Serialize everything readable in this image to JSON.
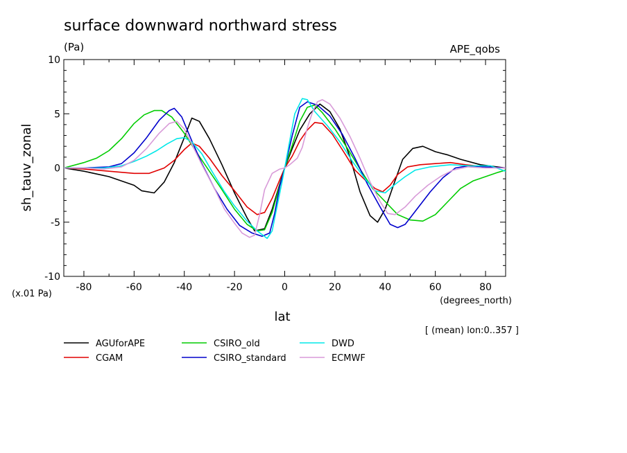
{
  "chart_data": {
    "type": "line",
    "title": "surface downward northward stress",
    "units": "(Pa)",
    "experiment": "APE_qobs",
    "xlabel": "lat",
    "x_units": "(degrees_north)",
    "ylabel": "sh_tauv_zonal",
    "y_scale_note": "(x.01 Pa)",
    "footnote": "[ (mean) lon:0..357 ]",
    "xlim": [
      -88,
      88
    ],
    "ylim": [
      -10,
      10
    ],
    "x_ticks": [
      -80,
      -60,
      -40,
      -20,
      0,
      20,
      40,
      60,
      80
    ],
    "y_ticks": [
      -10,
      -5,
      0,
      5,
      10
    ],
    "legend_position": "below plot, three columns",
    "series": [
      {
        "name": "AGUforAPE",
        "color": "#000000",
        "points": [
          [
            -88,
            0
          ],
          [
            -80,
            -0.3
          ],
          [
            -70,
            -0.8
          ],
          [
            -60,
            -1.6
          ],
          [
            -57,
            -2.1
          ],
          [
            -52,
            -2.3
          ],
          [
            -48,
            -1.3
          ],
          [
            -44,
            0.5
          ],
          [
            -40,
            2.8
          ],
          [
            -37,
            4.6
          ],
          [
            -34,
            4.3
          ],
          [
            -30,
            2.7
          ],
          [
            -25,
            0.3
          ],
          [
            -20,
            -2.3
          ],
          [
            -15,
            -4.6
          ],
          [
            -12,
            -5.8
          ],
          [
            -8,
            -5.6
          ],
          [
            -5,
            -3.8
          ],
          [
            -2,
            -1.5
          ],
          [
            0,
            0
          ],
          [
            3,
            1.8
          ],
          [
            6,
            3.5
          ],
          [
            10,
            5.0
          ],
          [
            14,
            5.9
          ],
          [
            18,
            5.2
          ],
          [
            22,
            3.6
          ],
          [
            26,
            1.0
          ],
          [
            30,
            -2.2
          ],
          [
            34,
            -4.4
          ],
          [
            37,
            -5.0
          ],
          [
            40,
            -3.8
          ],
          [
            43,
            -1.8
          ],
          [
            47,
            0.8
          ],
          [
            51,
            1.8
          ],
          [
            55,
            2.0
          ],
          [
            60,
            1.5
          ],
          [
            65,
            1.2
          ],
          [
            70,
            0.8
          ],
          [
            78,
            0.3
          ],
          [
            88,
            0
          ]
        ]
      },
      {
        "name": "CGAM",
        "color": "#e00000",
        "points": [
          [
            -88,
            0
          ],
          [
            -80,
            -0.1
          ],
          [
            -70,
            -0.3
          ],
          [
            -60,
            -0.5
          ],
          [
            -54,
            -0.5
          ],
          [
            -48,
            0
          ],
          [
            -44,
            0.7
          ],
          [
            -40,
            1.7
          ],
          [
            -37,
            2.3
          ],
          [
            -34,
            2.0
          ],
          [
            -30,
            0.9
          ],
          [
            -25,
            -0.7
          ],
          [
            -20,
            -2.1
          ],
          [
            -15,
            -3.6
          ],
          [
            -11,
            -4.3
          ],
          [
            -8,
            -4.1
          ],
          [
            -5,
            -2.8
          ],
          [
            -2,
            -1.1
          ],
          [
            0,
            0
          ],
          [
            3,
            1.1
          ],
          [
            6,
            2.5
          ],
          [
            9,
            3.5
          ],
          [
            12,
            4.2
          ],
          [
            15,
            4.1
          ],
          [
            19,
            3.1
          ],
          [
            24,
            1.3
          ],
          [
            28,
            -0.2
          ],
          [
            32,
            -1.1
          ],
          [
            36,
            -1.9
          ],
          [
            39,
            -2.2
          ],
          [
            42,
            -1.6
          ],
          [
            45,
            -0.6
          ],
          [
            49,
            0.1
          ],
          [
            54,
            0.3
          ],
          [
            60,
            0.4
          ],
          [
            66,
            0.5
          ],
          [
            72,
            0.3
          ],
          [
            80,
            0.1
          ],
          [
            88,
            0
          ]
        ]
      },
      {
        "name": "CSIRO_old",
        "color": "#00cc00",
        "points": [
          [
            -88,
            0
          ],
          [
            -80,
            0.5
          ],
          [
            -75,
            0.9
          ],
          [
            -70,
            1.6
          ],
          [
            -65,
            2.7
          ],
          [
            -60,
            4.1
          ],
          [
            -56,
            4.9
          ],
          [
            -52,
            5.3
          ],
          [
            -49,
            5.3
          ],
          [
            -45,
            4.7
          ],
          [
            -40,
            3.2
          ],
          [
            -35,
            1.4
          ],
          [
            -30,
            -0.3
          ],
          [
            -25,
            -2.0
          ],
          [
            -20,
            -3.8
          ],
          [
            -15,
            -5.2
          ],
          [
            -11,
            -5.8
          ],
          [
            -8,
            -5.7
          ],
          [
            -5,
            -4.1
          ],
          [
            -2,
            -1.6
          ],
          [
            0,
            0
          ],
          [
            3,
            2.1
          ],
          [
            6,
            4.3
          ],
          [
            9,
            5.6
          ],
          [
            12,
            5.8
          ],
          [
            15,
            5.1
          ],
          [
            20,
            3.6
          ],
          [
            25,
            1.8
          ],
          [
            30,
            -0.1
          ],
          [
            35,
            -1.9
          ],
          [
            40,
            -3.1
          ],
          [
            45,
            -4.3
          ],
          [
            50,
            -4.8
          ],
          [
            55,
            -4.9
          ],
          [
            60,
            -4.3
          ],
          [
            65,
            -3.1
          ],
          [
            70,
            -1.9
          ],
          [
            75,
            -1.2
          ],
          [
            80,
            -0.8
          ],
          [
            85,
            -0.4
          ],
          [
            88,
            -0.2
          ]
        ]
      },
      {
        "name": "CSIRO_standard",
        "color": "#0000cc",
        "points": [
          [
            -88,
            0
          ],
          [
            -80,
            0
          ],
          [
            -70,
            0.1
          ],
          [
            -65,
            0.4
          ],
          [
            -60,
            1.4
          ],
          [
            -55,
            2.8
          ],
          [
            -50,
            4.4
          ],
          [
            -46,
            5.3
          ],
          [
            -44,
            5.5
          ],
          [
            -41,
            4.7
          ],
          [
            -37,
            2.5
          ],
          [
            -33,
            0.4
          ],
          [
            -28,
            -1.9
          ],
          [
            -23,
            -3.8
          ],
          [
            -18,
            -5.3
          ],
          [
            -13,
            -6.0
          ],
          [
            -9,
            -6.3
          ],
          [
            -6,
            -6.0
          ],
          [
            -4,
            -4.2
          ],
          [
            -2,
            -1.7
          ],
          [
            0,
            0
          ],
          [
            3,
            3.0
          ],
          [
            6,
            5.6
          ],
          [
            9,
            6.1
          ],
          [
            13,
            5.8
          ],
          [
            18,
            4.8
          ],
          [
            23,
            3.1
          ],
          [
            28,
            0.9
          ],
          [
            33,
            -1.5
          ],
          [
            38,
            -3.6
          ],
          [
            42,
            -5.2
          ],
          [
            45,
            -5.5
          ],
          [
            48,
            -5.2
          ],
          [
            53,
            -3.7
          ],
          [
            58,
            -2.2
          ],
          [
            63,
            -0.9
          ],
          [
            68,
            0
          ],
          [
            73,
            0.2
          ],
          [
            80,
            0.1
          ],
          [
            88,
            0
          ]
        ]
      },
      {
        "name": "DWD",
        "color": "#00e8e8",
        "points": [
          [
            -88,
            0
          ],
          [
            -80,
            0
          ],
          [
            -72,
            0
          ],
          [
            -65,
            0.2
          ],
          [
            -60,
            0.6
          ],
          [
            -55,
            1.1
          ],
          [
            -51,
            1.6
          ],
          [
            -47,
            2.2
          ],
          [
            -43,
            2.7
          ],
          [
            -40,
            2.8
          ],
          [
            -37,
            2.4
          ],
          [
            -33,
            1.3
          ],
          [
            -29,
            -0.3
          ],
          [
            -24,
            -2.2
          ],
          [
            -20,
            -3.5
          ],
          [
            -15,
            -4.9
          ],
          [
            -11,
            -5.8
          ],
          [
            -7,
            -6.5
          ],
          [
            -5,
            -5.8
          ],
          [
            -3,
            -3.5
          ],
          [
            -1,
            -1.2
          ],
          [
            0,
            0
          ],
          [
            2,
            2.5
          ],
          [
            4,
            5.0
          ],
          [
            7,
            6.4
          ],
          [
            9,
            6.3
          ],
          [
            12,
            5.2
          ],
          [
            17,
            3.9
          ],
          [
            22,
            2.4
          ],
          [
            27,
            0.6
          ],
          [
            32,
            -1.0
          ],
          [
            36,
            -2.1
          ],
          [
            40,
            -2.3
          ],
          [
            44,
            -1.5
          ],
          [
            48,
            -0.8
          ],
          [
            52,
            -0.2
          ],
          [
            58,
            0.1
          ],
          [
            66,
            0.3
          ],
          [
            74,
            0.2
          ],
          [
            82,
            0.2
          ],
          [
            88,
            -0.3
          ]
        ]
      },
      {
        "name": "ECMWF",
        "color": "#d89ad8",
        "points": [
          [
            -88,
            0
          ],
          [
            -80,
            0
          ],
          [
            -72,
            -0.1
          ],
          [
            -65,
            0.1
          ],
          [
            -60,
            0.7
          ],
          [
            -55,
            1.8
          ],
          [
            -50,
            3.2
          ],
          [
            -46,
            4.1
          ],
          [
            -43,
            4.3
          ],
          [
            -40,
            3.6
          ],
          [
            -37,
            2.2
          ],
          [
            -33,
            0.3
          ],
          [
            -28,
            -1.9
          ],
          [
            -24,
            -3.8
          ],
          [
            -20,
            -5.1
          ],
          [
            -17,
            -6.0
          ],
          [
            -14,
            -6.4
          ],
          [
            -12,
            -6.2
          ],
          [
            -10,
            -4.3
          ],
          [
            -8,
            -2.0
          ],
          [
            -5,
            -0.5
          ],
          [
            -2,
            -0.1
          ],
          [
            0,
            0
          ],
          [
            2,
            0.3
          ],
          [
            5,
            0.9
          ],
          [
            7,
            1.9
          ],
          [
            9,
            3.7
          ],
          [
            11,
            5.1
          ],
          [
            13,
            6.1
          ],
          [
            15,
            6.3
          ],
          [
            18,
            5.9
          ],
          [
            22,
            4.6
          ],
          [
            26,
            2.9
          ],
          [
            30,
            0.9
          ],
          [
            34,
            -1.3
          ],
          [
            38,
            -3.1
          ],
          [
            41,
            -4.2
          ],
          [
            44,
            -4.3
          ],
          [
            48,
            -3.6
          ],
          [
            52,
            -2.6
          ],
          [
            57,
            -1.6
          ],
          [
            62,
            -0.8
          ],
          [
            67,
            -0.2
          ],
          [
            73,
            0.1
          ],
          [
            80,
            0
          ],
          [
            88,
            0
          ]
        ]
      }
    ]
  }
}
